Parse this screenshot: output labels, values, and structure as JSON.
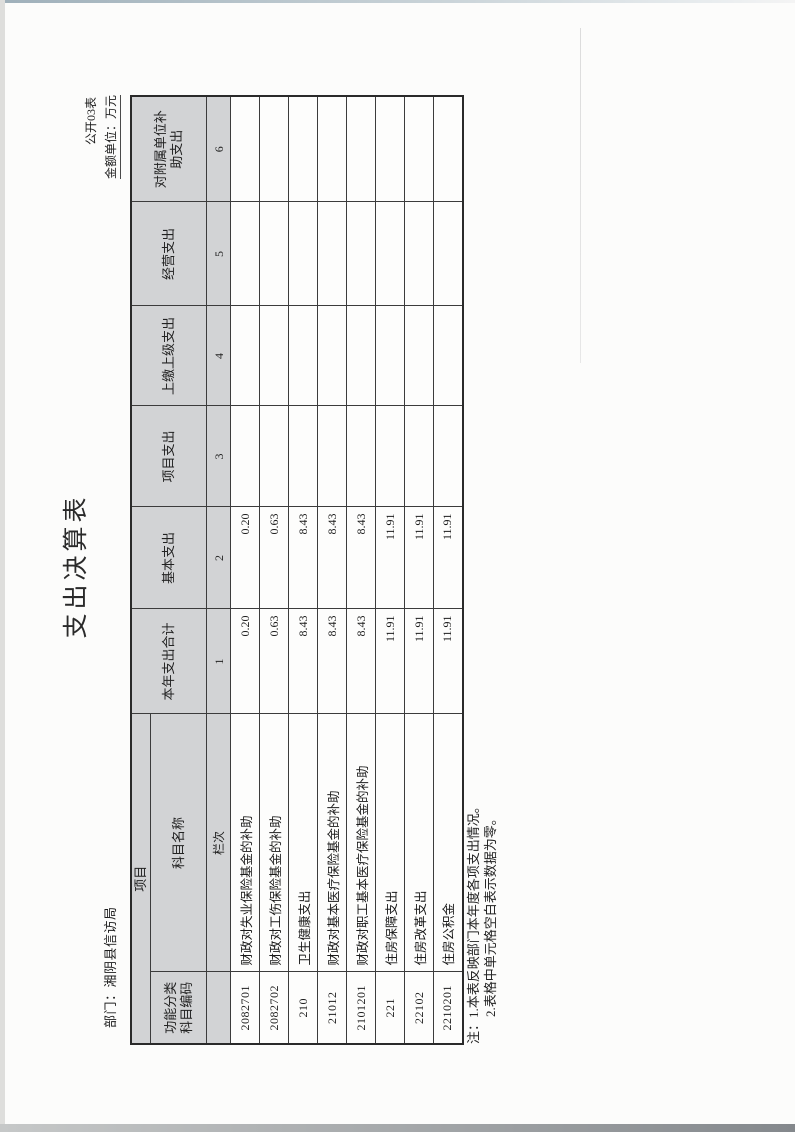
{
  "doc": {
    "form_label": "公开03表",
    "unit_label": "金额单位：万元",
    "title": "支出决算表",
    "department_label": "部门：湘阴县信访局",
    "colors": {
      "header_fill": "#d2d3d5",
      "page": "#fcfcfb",
      "border": "#3c3c3c"
    },
    "table": {
      "header": {
        "project": "项目",
        "code": "功能分类\n科目编码",
        "subject_name": "科目名称",
        "lanci": "栏次",
        "money_columns": [
          "本年支出合计",
          "基本支出",
          "项目支出",
          "上缴上级支出",
          "经营支出",
          "对附属单位补\n助支出"
        ],
        "column_numbers": [
          "1",
          "2",
          "3",
          "4",
          "5",
          "6"
        ]
      },
      "rows": [
        {
          "code": "2082701",
          "name": "财政对失业保险基金的补助",
          "total": "0.20",
          "basic": "0.20",
          "project": "",
          "upper": "",
          "operating": "",
          "subsidy": ""
        },
        {
          "code": "2082702",
          "name": "财政对工伤保险基金的补助",
          "total": "0.63",
          "basic": "0.63",
          "project": "",
          "upper": "",
          "operating": "",
          "subsidy": ""
        },
        {
          "code": "210",
          "name": "卫生健康支出",
          "total": "8.43",
          "basic": "8.43",
          "project": "",
          "upper": "",
          "operating": "",
          "subsidy": ""
        },
        {
          "code": "21012",
          "name": "财政对基本医疗保险基金的补助",
          "total": "8.43",
          "basic": "8.43",
          "project": "",
          "upper": "",
          "operating": "",
          "subsidy": ""
        },
        {
          "code": "2101201",
          "name": "财政对职工基本医疗保险基金的补助",
          "total": "8.43",
          "basic": "8.43",
          "project": "",
          "upper": "",
          "operating": "",
          "subsidy": ""
        },
        {
          "code": "221",
          "name": "住房保障支出",
          "total": "11.91",
          "basic": "11.91",
          "project": "",
          "upper": "",
          "operating": "",
          "subsidy": ""
        },
        {
          "code": "22102",
          "name": "住房改革支出",
          "total": "11.91",
          "basic": "11.91",
          "project": "",
          "upper": "",
          "operating": "",
          "subsidy": ""
        },
        {
          "code": "2210201",
          "name": "住房公积金",
          "total": "11.91",
          "basic": "11.91",
          "project": "",
          "upper": "",
          "operating": "",
          "subsidy": ""
        }
      ]
    },
    "notes": [
      "注：1.本表反映部门本年度各项支出情况。",
      "2.表格中单元格空白表示数据为零。"
    ]
  }
}
